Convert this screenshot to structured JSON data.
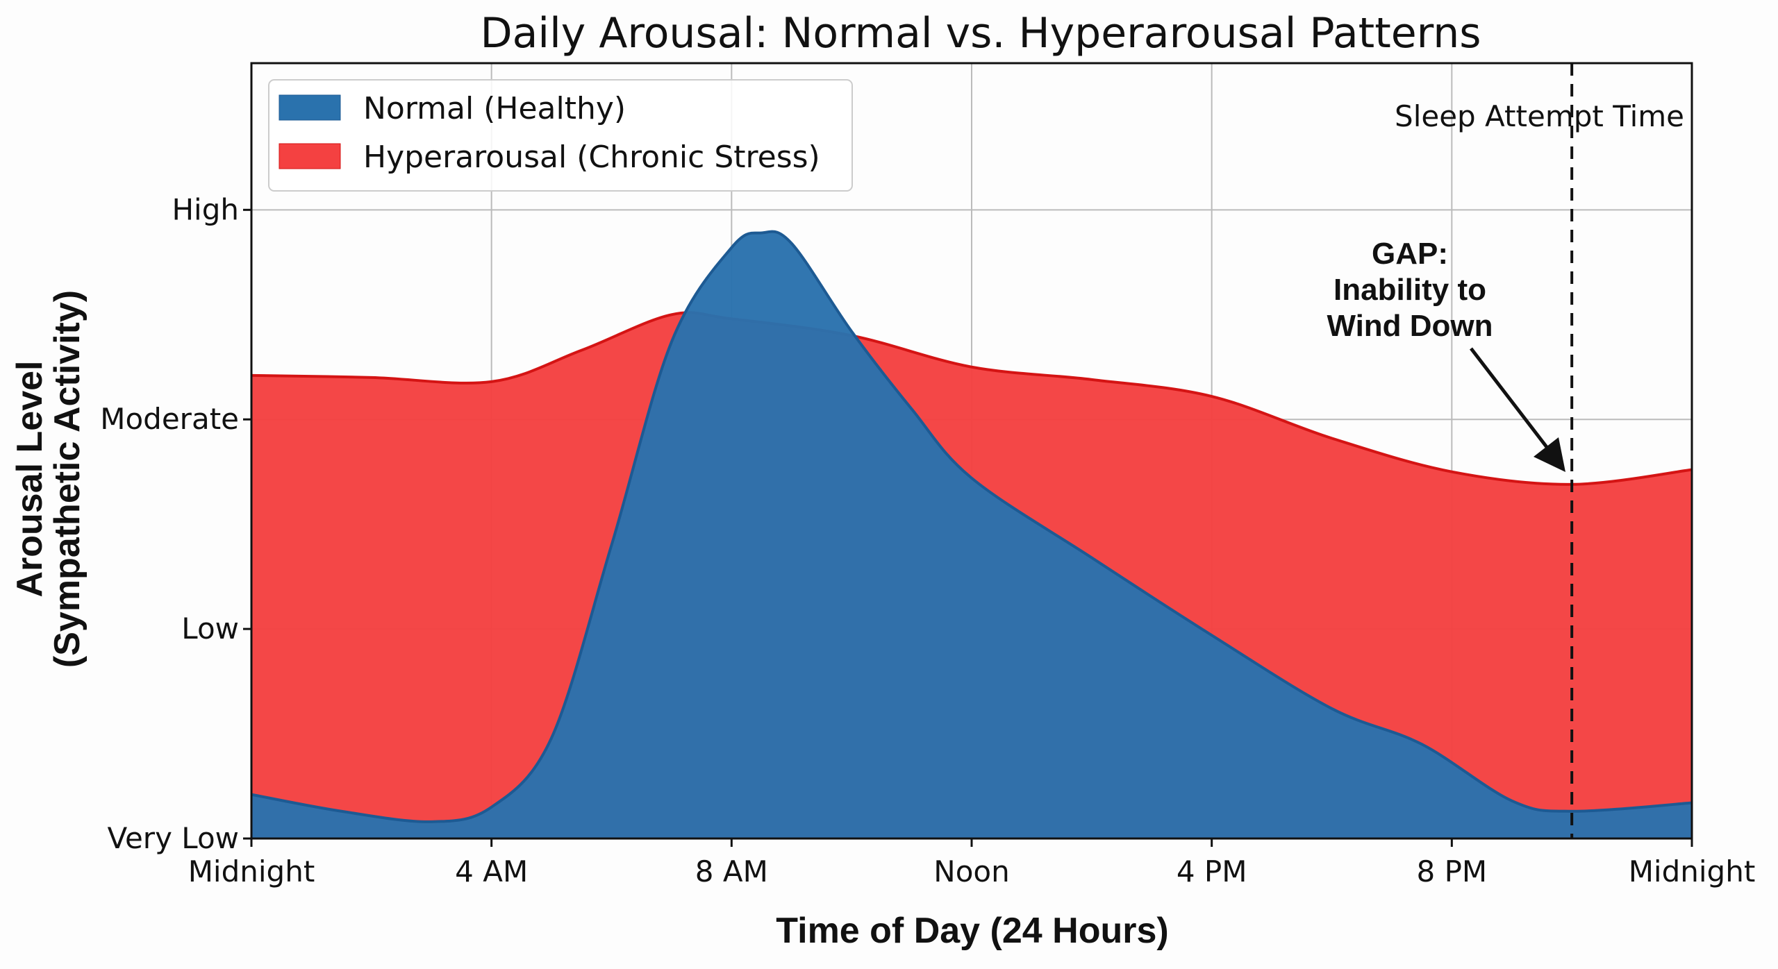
{
  "chart_data": {
    "type": "area",
    "title": "Daily Arousal: Normal vs. Hyperarousal Patterns",
    "xlabel": "Time of Day (24 Hours)",
    "ylabel": [
      "Arousal Level",
      "(Sympathetic Activity)"
    ],
    "xlim": [
      0,
      24
    ],
    "ylim": [
      0,
      3.7
    ],
    "x_ticks": [
      0,
      4,
      8,
      12,
      16,
      20,
      24
    ],
    "x_tick_labels": [
      "Midnight",
      "4 AM",
      "8 AM",
      "Noon",
      "4 PM",
      "8 PM",
      "Midnight"
    ],
    "y_ticks": [
      0,
      1,
      2,
      3
    ],
    "y_tick_labels": [
      "Very Low",
      "Low",
      "Moderate",
      "High"
    ],
    "grid": true,
    "legend_position": "top-left",
    "series": [
      {
        "name": "Hyperarousal (Chronic Stress)",
        "color": "#f44141",
        "edge_color": "#d41414",
        "x": [
          0,
          2,
          4,
          5.5,
          7,
          8,
          10,
          12,
          14,
          16,
          18,
          20,
          22,
          24
        ],
        "values": [
          2.21,
          2.2,
          2.18,
          2.33,
          2.5,
          2.48,
          2.4,
          2.25,
          2.19,
          2.11,
          1.91,
          1.75,
          1.69,
          1.76
        ]
      },
      {
        "name": "Normal (Healthy)",
        "color": "#2a72ad",
        "edge_color": "#1d5a93",
        "x": [
          0,
          1.5,
          3,
          4,
          5,
          6,
          7,
          8,
          8.5,
          9,
          10,
          11,
          12,
          14,
          16,
          18,
          19.5,
          21,
          22,
          24
        ],
        "values": [
          0.21,
          0.13,
          0.08,
          0.15,
          0.48,
          1.4,
          2.37,
          2.82,
          2.89,
          2.84,
          2.42,
          2.05,
          1.72,
          1.34,
          0.97,
          0.62,
          0.45,
          0.18,
          0.13,
          0.17
        ]
      }
    ],
    "vline": {
      "x": 22,
      "label": "Sleep Attempt Time",
      "style": "dashed"
    },
    "annotation": {
      "lines": [
        "GAP:",
        "Inability to",
        "Wind Down"
      ],
      "points_to": {
        "x": 22,
        "y": 1.69
      }
    }
  }
}
